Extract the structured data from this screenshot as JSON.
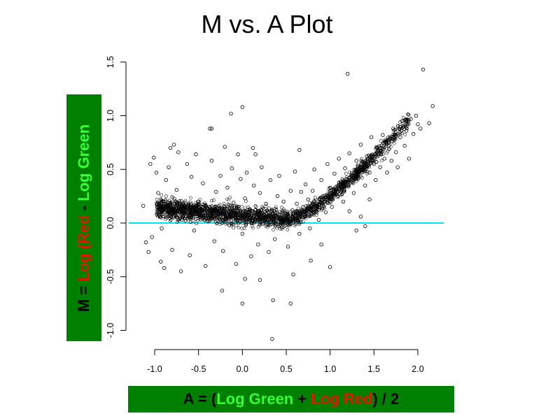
{
  "colors": {
    "label_box": "#008000",
    "green_text": "#33ff33",
    "red_text": "#dd1a00",
    "black_text": "#000000",
    "reference_line": "#00e5ee",
    "points": "#000000"
  },
  "chart_data": {
    "type": "scatter",
    "title": "M vs. A Plot",
    "ylabel_parts": [
      {
        "text": "M = ",
        "color": "black"
      },
      {
        "text": "Log (Red",
        "color": "red"
      },
      {
        "text": " - ",
        "color": "black"
      },
      {
        "text": "Log Green",
        "color": "green"
      }
    ],
    "xlabel_parts": [
      {
        "text": "A =  (",
        "color": "black"
      },
      {
        "text": "Log Green",
        "color": "green"
      },
      {
        "text": " + ",
        "color": "black"
      },
      {
        "text": "Log Red",
        "color": "red"
      },
      {
        "text": ") / 2",
        "color": "black"
      }
    ],
    "xlim": [
      -1.2,
      2.3
    ],
    "ylim": [
      -1.1,
      1.5
    ],
    "x_ticks": [
      -1.0,
      -0.5,
      0.0,
      0.5,
      1.0,
      1.5,
      2.0
    ],
    "x_tick_labels": [
      "-1.0",
      "-0.5",
      "0.0",
      "0.5",
      "1.0",
      "1.5",
      "2.0"
    ],
    "y_ticks": [
      -1.0,
      -0.5,
      0.0,
      0.5,
      1.0,
      1.5
    ],
    "y_tick_labels": [
      "-1.0",
      "-0.5",
      "0.0",
      "0.5",
      "1.0",
      "1.5"
    ],
    "reference_line": {
      "y": 0.0
    },
    "marker": "open-circle",
    "series": [
      {
        "points": [
          [
            -1.13,
            0.16
          ],
          [
            -1.1,
            -0.18
          ],
          [
            -1.07,
            -0.27
          ],
          [
            -1.05,
            0.55
          ],
          [
            -1.03,
            -0.13
          ],
          [
            -1.01,
            0.61
          ],
          [
            -0.98,
            0.47
          ],
          [
            -0.96,
            0.28
          ],
          [
            -0.93,
            -0.36
          ],
          [
            -0.92,
            -0.05
          ],
          [
            -0.89,
            -0.42
          ],
          [
            -0.87,
            0.4
          ],
          [
            -0.84,
            0.52
          ],
          [
            -0.82,
            0.7
          ],
          [
            -0.8,
            -0.25
          ],
          [
            -0.78,
            0.73
          ],
          [
            -0.75,
            0.31
          ],
          [
            -0.73,
            0.66
          ],
          [
            -0.7,
            -0.45
          ],
          [
            -0.68,
            0.18
          ],
          [
            -0.65,
            0.12
          ],
          [
            -0.63,
            0.55
          ],
          [
            -0.6,
            -0.3
          ],
          [
            -0.58,
            0.43
          ],
          [
            -0.55,
            -0.07
          ],
          [
            -0.53,
            0.64
          ],
          [
            -0.5,
            0.2
          ],
          [
            -0.47,
            0.06
          ],
          [
            -0.45,
            0.37
          ],
          [
            -0.42,
            -0.4
          ],
          [
            -0.4,
            0.14
          ],
          [
            -0.37,
            0.88
          ],
          [
            -0.35,
            0.58
          ],
          [
            -0.32,
            -0.17
          ],
          [
            -0.3,
            0.29
          ],
          [
            -0.27,
            0.08
          ],
          [
            -0.25,
            0.44
          ],
          [
            -0.22,
            -0.26
          ],
          [
            -0.2,
            0.71
          ],
          [
            -0.17,
            0.33
          ],
          [
            -0.15,
            -0.02
          ],
          [
            -0.12,
            0.51
          ],
          [
            -0.1,
            0.19
          ],
          [
            -0.07,
            -0.38
          ],
          [
            -0.05,
            0.15
          ],
          [
            -0.02,
            0.41
          ],
          [
            0.0,
            -0.1
          ],
          [
            0.03,
            0.23
          ],
          [
            0.05,
            0.47
          ],
          [
            0.08,
            0.05
          ],
          [
            0.1,
            -0.31
          ],
          [
            0.13,
            0.35
          ],
          [
            0.15,
            0.12
          ],
          [
            0.18,
            -0.2
          ],
          [
            0.2,
            0.28
          ],
          [
            0.22,
            0.52
          ],
          [
            0.25,
            0.02
          ],
          [
            0.27,
            0.18
          ],
          [
            0.3,
            -0.27
          ],
          [
            0.32,
            0.4
          ],
          [
            0.35,
            0.09
          ],
          [
            0.37,
            -0.15
          ],
          [
            0.4,
            0.25
          ],
          [
            0.42,
            0.44
          ],
          [
            0.45,
            -0.04
          ],
          [
            0.47,
            0.2
          ],
          [
            0.5,
            0.07
          ],
          [
            0.52,
            -0.22
          ],
          [
            0.55,
            0.3
          ],
          [
            0.57,
            0.12
          ],
          [
            0.6,
            0.48
          ],
          [
            0.62,
            0.18
          ],
          [
            0.65,
            -0.1
          ],
          [
            0.67,
            0.29
          ],
          [
            0.7,
            0.1
          ],
          [
            0.72,
            0.36
          ],
          [
            0.75,
            0.22
          ],
          [
            0.77,
            -0.05
          ],
          [
            0.8,
            0.3
          ],
          [
            0.82,
            0.5
          ],
          [
            0.85,
            0.18
          ],
          [
            0.87,
            0.03
          ],
          [
            0.9,
            0.4
          ],
          [
            0.92,
            0.25
          ],
          [
            0.95,
            0.1
          ],
          [
            0.97,
            0.55
          ],
          [
            1.0,
            0.33
          ],
          [
            1.02,
            0.15
          ],
          [
            1.05,
            0.46
          ],
          [
            1.07,
            0.27
          ],
          [
            1.1,
            0.6
          ],
          [
            1.12,
            0.38
          ],
          [
            1.15,
            0.2
          ],
          [
            1.17,
            0.51
          ],
          [
            1.2,
            0.35
          ],
          [
            1.22,
            0.65
          ],
          [
            1.25,
            0.44
          ],
          [
            1.27,
            0.28
          ],
          [
            1.3,
            0.58
          ],
          [
            1.32,
            0.42
          ],
          [
            1.35,
            0.73
          ],
          [
            1.37,
            0.5
          ],
          [
            1.4,
            0.35
          ],
          [
            1.42,
            0.62
          ],
          [
            1.45,
            0.47
          ],
          [
            1.47,
            0.8
          ],
          [
            1.5,
            0.55
          ],
          [
            1.52,
            0.4
          ],
          [
            1.55,
            0.68
          ],
          [
            1.57,
            0.52
          ],
          [
            1.6,
            0.82
          ],
          [
            1.62,
            0.6
          ],
          [
            1.65,
            0.47
          ],
          [
            1.67,
            0.75
          ],
          [
            1.7,
            0.58
          ],
          [
            1.72,
            0.88
          ],
          [
            1.75,
            0.66
          ],
          [
            1.77,
            0.52
          ],
          [
            1.8,
            0.8
          ],
          [
            1.82,
            0.95
          ],
          [
            1.85,
            0.72
          ],
          [
            1.87,
            0.86
          ],
          [
            1.9,
            0.6
          ],
          [
            1.92,
            0.97
          ],
          [
            1.95,
            0.83
          ],
          [
            1.98,
            1.0
          ],
          [
            2.0,
            0.92
          ],
          [
            2.03,
            0.88
          ],
          [
            2.06,
            1.43
          ],
          [
            2.13,
            0.93
          ],
          [
            2.17,
            1.09
          ],
          [
            1.2,
            1.39
          ],
          [
            0.0,
            1.08
          ],
          [
            -0.13,
            1.02
          ],
          [
            -0.35,
            0.88
          ],
          [
            0.0,
            -0.75
          ],
          [
            0.34,
            -1.08
          ],
          [
            0.35,
            -0.72
          ],
          [
            0.55,
            -0.75
          ],
          [
            -0.23,
            -0.63
          ],
          [
            0.03,
            -0.52
          ],
          [
            0.2,
            -0.53
          ],
          [
            1.0,
            -0.41
          ],
          [
            0.12,
            0.7
          ],
          [
            0.15,
            0.64
          ],
          [
            0.65,
            0.68
          ],
          [
            -0.05,
            0.64
          ],
          [
            1.22,
            0.11
          ],
          [
            1.3,
            -0.07
          ],
          [
            1.35,
            0.06
          ],
          [
            1.4,
            -0.03
          ],
          [
            1.45,
            0.22
          ],
          [
            0.58,
            -0.48
          ],
          [
            0.78,
            -0.35
          ],
          [
            0.9,
            -0.2
          ]
        ]
      }
    ]
  }
}
